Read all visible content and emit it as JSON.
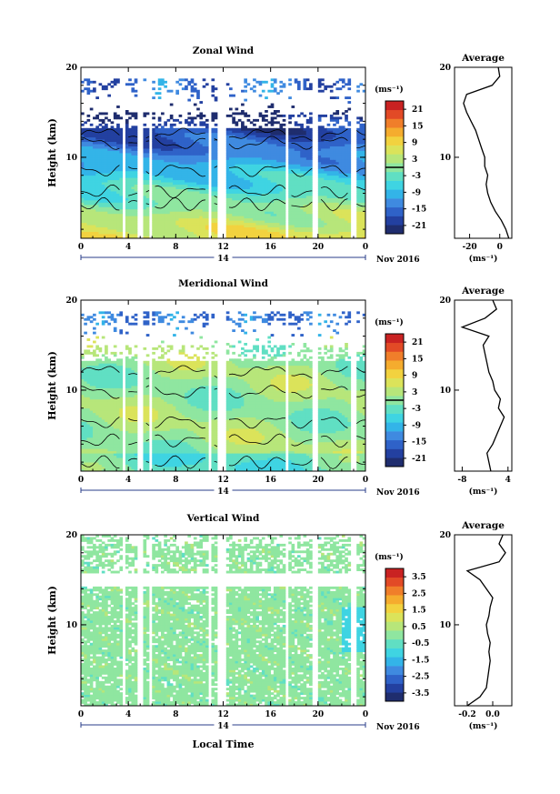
{
  "colors": {
    "scale": [
      "#1f2d6e",
      "#2340a0",
      "#2f62c8",
      "#3f8ae0",
      "#33b4e8",
      "#3fd4e2",
      "#60dfc3",
      "#8fe6a0",
      "#b7e67a",
      "#dbe35a",
      "#f2d23f",
      "#f5ac2e",
      "#f07e2a",
      "#e24a26",
      "#c92222"
    ],
    "line": "#000000"
  },
  "xaxis": {
    "label": "Local Time",
    "ticks": [
      "0",
      "4",
      "8",
      "12",
      "16",
      "20",
      "0"
    ],
    "day_label": "14",
    "month_label": "Nov 2016"
  },
  "chart_data": [
    {
      "type": "heatmap",
      "title": "Zonal Wind",
      "ylabel": "Height (km)",
      "ytick_labels": [
        "20",
        "10"
      ],
      "ylim": [
        1,
        20
      ],
      "xlim": [
        0,
        24
      ],
      "unit": "(ms⁻¹)",
      "colorbar_ticks": [
        "21",
        "15",
        "9",
        "3",
        "-3",
        "-9",
        "-15",
        "-21"
      ],
      "colorbar_range": [
        -24,
        24
      ],
      "contour_level": 0,
      "profile": {
        "title": "Average",
        "xlabel": "(ms⁻¹)",
        "xtick_labels": [
          "-20",
          "0"
        ],
        "xlim": [
          -30,
          8
        ],
        "height": [
          1,
          2,
          3,
          4,
          5,
          6,
          7,
          8,
          9,
          10,
          11,
          12,
          13,
          14,
          15,
          16,
          17,
          18,
          19,
          20
        ],
        "value": [
          6,
          4,
          1,
          -3,
          -6,
          -8,
          -9,
          -8,
          -10,
          -10,
          -12,
          -14,
          -16,
          -19,
          -22,
          -24,
          -22,
          -5,
          0,
          -1
        ]
      }
    },
    {
      "type": "heatmap",
      "title": "Meridional Wind",
      "ylabel": "Height (km)",
      "ytick_labels": [
        "20",
        "10"
      ],
      "ylim": [
        1,
        20
      ],
      "xlim": [
        0,
        24
      ],
      "unit": "(ms⁻¹)",
      "colorbar_ticks": [
        "21",
        "15",
        "9",
        "3",
        "-3",
        "-9",
        "-15",
        "-21"
      ],
      "colorbar_range": [
        -24,
        24
      ],
      "contour_level": 0,
      "profile": {
        "title": "Average",
        "xlabel": "(ms⁻¹)",
        "xtick_labels": [
          "-8",
          "4"
        ],
        "xlim": [
          -10,
          5
        ],
        "height": [
          1,
          2,
          3,
          4,
          5,
          6,
          7,
          8,
          9,
          10,
          11,
          12,
          13,
          14,
          15,
          16,
          17,
          18,
          19,
          20
        ],
        "value": [
          -0.5,
          -1,
          -1.5,
          0,
          1,
          2,
          3,
          1.5,
          2,
          0.5,
          0,
          -1,
          -1.5,
          -2,
          -2.5,
          -1,
          -8,
          -2,
          1,
          0
        ]
      }
    },
    {
      "type": "heatmap",
      "title": "Vertical Wind",
      "ylabel": "Height (km)",
      "ytick_labels": [
        "20",
        "10"
      ],
      "ylim": [
        1,
        20
      ],
      "xlim": [
        0,
        24
      ],
      "unit": "(ms⁻¹)",
      "colorbar_ticks": [
        "3.5",
        "2.5",
        "1.5",
        "0.5",
        "-0.5",
        "-1.5",
        "-2.5",
        "-3.5"
      ],
      "colorbar_range": [
        -4,
        4
      ],
      "contour_level": null,
      "profile": {
        "title": "Average",
        "xlabel": "(ms⁻¹)",
        "xtick_labels": [
          "-0.2",
          "0.0"
        ],
        "xlim": [
          -0.3,
          0.15
        ],
        "height": [
          1,
          2,
          3,
          4,
          5,
          6,
          7,
          8,
          9,
          10,
          11,
          12,
          13,
          14,
          15,
          16,
          17,
          18,
          19,
          20
        ],
        "value": [
          -0.2,
          -0.1,
          -0.05,
          -0.04,
          -0.03,
          -0.02,
          -0.03,
          -0.02,
          -0.04,
          -0.05,
          -0.03,
          -0.02,
          0,
          -0.05,
          -0.1,
          -0.2,
          0.05,
          0.1,
          0.05,
          0.08
        ]
      }
    }
  ]
}
